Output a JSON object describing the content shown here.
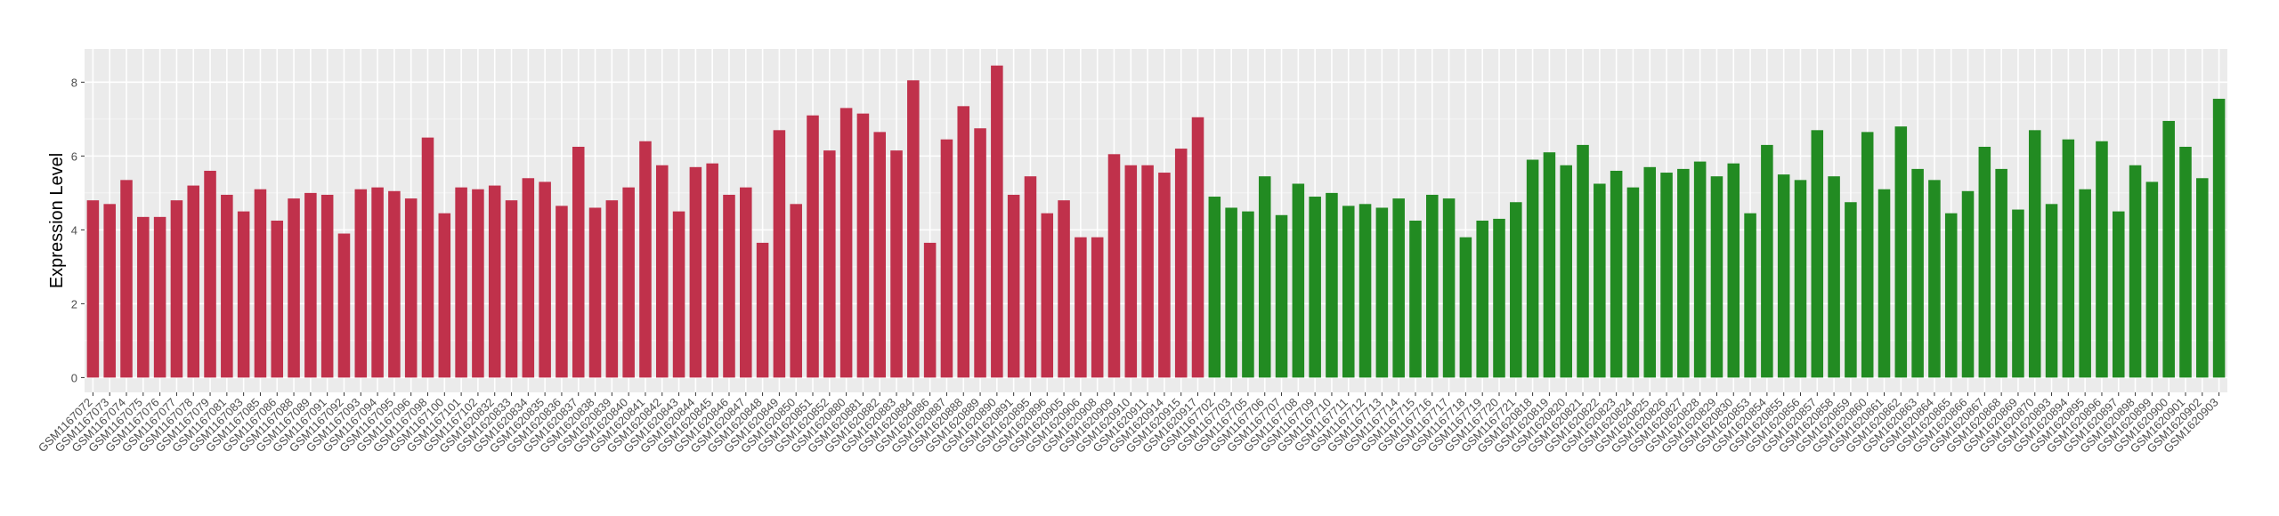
{
  "chart_data": {
    "type": "bar",
    "y_label": "Expression Level",
    "categories": [
      "GSM1167072",
      "GSM1167073",
      "GSM1167074",
      "GSM1167075",
      "GSM1167076",
      "GSM1167077",
      "GSM1167078",
      "GSM1167079",
      "GSM1167081",
      "GSM1167083",
      "GSM1167085",
      "GSM1167086",
      "GSM1167088",
      "GSM1167089",
      "GSM1167091",
      "GSM1167092",
      "GSM1167093",
      "GSM1167094",
      "GSM1167095",
      "GSM1167096",
      "GSM1167098",
      "GSM1167100",
      "GSM1167101",
      "GSM1167102",
      "GSM1620832",
      "GSM1620833",
      "GSM1620834",
      "GSM1620835",
      "GSM1620836",
      "GSM1620837",
      "GSM1620838",
      "GSM1620839",
      "GSM1620840",
      "GSM1620841",
      "GSM1620842",
      "GSM1620843",
      "GSM1620844",
      "GSM1620845",
      "GSM1620846",
      "GSM1620847",
      "GSM1620848",
      "GSM1620849",
      "GSM1620850",
      "GSM1620851",
      "GSM1620852",
      "GSM1620880",
      "GSM1620881",
      "GSM1620882",
      "GSM1620883",
      "GSM1620884",
      "GSM1620886",
      "GSM1620887",
      "GSM1620888",
      "GSM1620889",
      "GSM1620890",
      "GSM1620891",
      "GSM1620895",
      "GSM1620896",
      "GSM1620905",
      "GSM1620906",
      "GSM1620908",
      "GSM1620909",
      "GSM1620910",
      "GSM1620911",
      "GSM1620914",
      "GSM1620915",
      "GSM1620917",
      "GSM1167702",
      "GSM1167703",
      "GSM1167705",
      "GSM1167706",
      "GSM1167707",
      "GSM1167708",
      "GSM1167709",
      "GSM1167710",
      "GSM1167711",
      "GSM1167712",
      "GSM1167713",
      "GSM1167714",
      "GSM1167715",
      "GSM1167716",
      "GSM1167717",
      "GSM1167718",
      "GSM1167719",
      "GSM1167720",
      "GSM1167721",
      "GSM1620818",
      "GSM1620819",
      "GSM1620820",
      "GSM1620821",
      "GSM1620822",
      "GSM1620823",
      "GSM1620824",
      "GSM1620825",
      "GSM1620826",
      "GSM1620827",
      "GSM1620828",
      "GSM1620829",
      "GSM1620830",
      "GSM1620853",
      "GSM1620854",
      "GSM1620855",
      "GSM1620856",
      "GSM1620857",
      "GSM1620858",
      "GSM1620859",
      "GSM1620860",
      "GSM1620861",
      "GSM1620862",
      "GSM1620863",
      "GSM1620864",
      "GSM1620865",
      "GSM1620866",
      "GSM1620867",
      "GSM1620868",
      "GSM1620869",
      "GSM1620870",
      "GSM1620893",
      "GSM1620894",
      "GSM1620895",
      "GSM1620896",
      "GSM1620897",
      "GSM1620898",
      "GSM1620899",
      "GSM1620900",
      "GSM1620901",
      "GSM1620902",
      "GSM1620903"
    ],
    "series": [
      {
        "color": "#c0314b",
        "values": [
          4.8,
          4.7,
          5.35,
          4.35,
          4.35,
          4.8,
          5.2,
          5.6,
          4.95,
          4.5,
          5.1,
          4.25,
          4.85,
          5.0,
          4.95,
          3.9,
          5.1,
          5.15,
          5.05,
          4.85,
          6.5,
          4.45,
          5.15,
          5.1,
          5.2,
          4.8,
          5.4,
          5.3,
          4.65,
          6.25,
          4.6,
          4.8,
          5.15,
          6.4,
          5.75,
          4.5,
          5.7,
          5.8,
          4.95,
          5.15,
          3.65,
          6.7,
          4.7,
          7.1,
          6.15,
          7.3,
          7.15,
          6.65,
          6.15,
          8.05,
          3.65,
          6.45,
          7.35,
          6.75,
          8.45,
          4.95,
          5.45,
          4.45,
          4.8,
          3.8,
          3.8,
          6.05,
          5.75,
          5.75,
          5.55,
          6.2,
          7.05,
          null,
          null,
          null,
          null,
          null,
          null,
          null,
          null,
          null,
          null,
          null,
          null,
          null,
          null,
          null,
          null,
          null,
          null,
          null,
          null,
          null,
          null,
          null,
          null,
          null,
          null,
          null,
          null,
          null,
          null,
          null,
          null,
          null,
          null,
          null,
          null,
          null,
          null,
          null,
          null,
          null,
          null,
          null,
          null,
          null,
          null,
          null,
          null,
          null,
          null,
          null,
          null,
          null,
          null,
          null,
          null,
          null,
          null,
          null,
          null,
          null
        ]
      },
      {
        "color": "#228b22",
        "values": [
          null,
          null,
          null,
          null,
          null,
          null,
          null,
          null,
          null,
          null,
          null,
          null,
          null,
          null,
          null,
          null,
          null,
          null,
          null,
          null,
          null,
          null,
          null,
          null,
          null,
          null,
          null,
          null,
          null,
          null,
          null,
          null,
          null,
          null,
          null,
          null,
          null,
          null,
          null,
          null,
          null,
          null,
          null,
          null,
          null,
          null,
          null,
          null,
          null,
          null,
          null,
          null,
          null,
          null,
          null,
          null,
          null,
          null,
          null,
          null,
          null,
          null,
          null,
          null,
          null,
          null,
          null,
          4.9,
          4.6,
          4.5,
          5.45,
          4.4,
          5.25,
          4.9,
          5.0,
          4.65,
          4.7,
          4.6,
          4.85,
          4.25,
          4.95,
          4.85,
          3.8,
          4.25,
          4.3,
          4.75,
          5.9,
          6.1,
          5.75,
          6.3,
          5.25,
          5.6,
          5.15,
          5.7,
          5.55,
          5.65,
          5.85,
          5.45,
          5.8,
          4.45,
          6.3,
          5.5,
          5.35,
          6.7,
          5.45,
          4.75,
          6.65,
          5.1,
          6.8,
          5.65,
          5.35,
          4.45,
          5.05,
          6.25,
          5.65,
          4.55,
          6.7,
          4.7,
          6.45,
          5.1,
          6.4,
          4.5,
          5.75,
          5.3,
          6.95,
          6.25,
          5.4,
          7.55
        ]
      }
    ],
    "ylim": [
      -0.4,
      8.9
    ],
    "yticks": [
      0,
      2,
      4,
      6,
      8
    ],
    "grid": true,
    "minor_grid": true
  }
}
